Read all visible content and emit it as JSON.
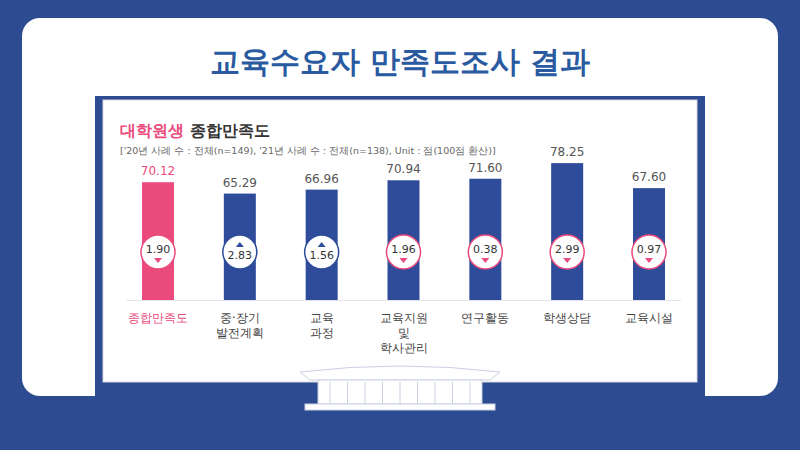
{
  "page_title": "교육수요자 만족도조사 결과",
  "chart_data": {
    "type": "bar",
    "title": "대학원생 종합만족도",
    "subtitle": "['20년 사례 수 : 전체(n=149), '21년 사례 수 : 전체(n=138), Unit : 점(100점 환산)]",
    "categories": [
      "종합만족도",
      "중·장기\n발전계획",
      "교육\n과정",
      "교육지원\n및\n학사관리",
      "연구활동",
      "학생상담",
      "교육시설"
    ],
    "values": [
      70.12,
      65.29,
      66.96,
      70.94,
      71.6,
      78.25,
      67.6
    ],
    "value_labels": [
      "70.12",
      "65.29",
      "66.96",
      "70.94",
      "71.60",
      "78.25",
      "67.60"
    ],
    "changes": [
      -1.9,
      2.83,
      1.56,
      -1.96,
      -0.38,
      -2.99,
      -0.97
    ],
    "change_labels": [
      "1.90",
      "2.83",
      "1.56",
      "1.96",
      "0.38",
      "2.99",
      "0.97"
    ],
    "colors": [
      "#ea4a7c",
      "#2e4c9a",
      "#2e4c9a",
      "#2e4c9a",
      "#2e4c9a",
      "#2e4c9a",
      "#2e4c9a"
    ],
    "ylim": [
      20,
      80
    ],
    "data_labels": true,
    "tick_labels": false,
    "grid": false
  }
}
